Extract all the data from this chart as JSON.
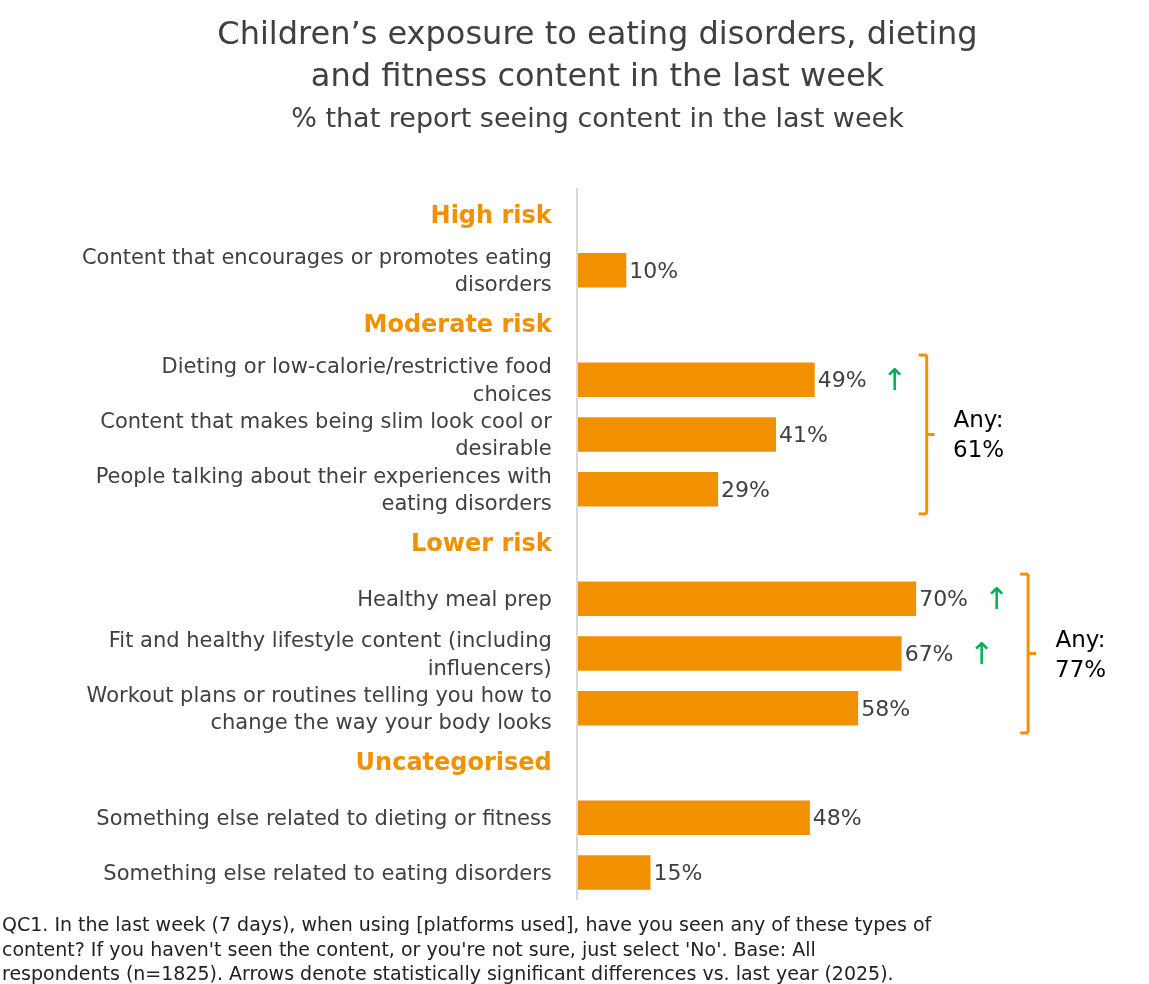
{
  "chart_data": {
    "type": "bar",
    "orientation": "horizontal",
    "title": "Children’s exposure to eating disorders, dieting and fitness content in the last week",
    "subtitle": "% that report seeing content in the last week",
    "categories": [
      "High risk",
      "Content that encourages or promotes eating disorders",
      "Moderate risk",
      "Dieting or low-calorie/restrictive food choices",
      "Content that makes being slim look cool or desirable",
      "People talking about their experiences with eating disorders",
      "Lower risk",
      "Healthy meal prep",
      "Fit and healthy lifestyle content (including influencers)",
      "Workout plans or routines telling you how to change the way your body looks",
      "Uncategorised",
      "Something else related to dieting or fitness",
      "Something else related to eating disorders"
    ],
    "values": [
      null,
      10,
      null,
      49,
      41,
      29,
      null,
      70,
      67,
      58,
      null,
      48,
      15
    ],
    "value_labels": [
      null,
      "10%",
      null,
      "49%",
      "41%",
      "29%",
      null,
      "70%",
      "67%",
      "58%",
      null,
      "48%",
      "15%"
    ],
    "color": "#f29100",
    "grid": false,
    "tick_labels": "y",
    "annotations": [
      "Any:\n61%",
      "Any:\n77%",
      {
        "text": "↑",
        "x": 49,
        "y": "Dieting or low-calorie/restrictive food choices"
      },
      {
        "text": "↑",
        "x": 70,
        "y": "Healthy meal prep"
      },
      {
        "text": "↑",
        "x": 67,
        "y": "Fit and healthy lifestyle content (including influencers)"
      },
      "QC1. In the last week (7 days), when using [platforms used], have you seen any of these types of content? If you haven't seen the content, or you're not sure, just select 'No'. Base: All respondents (n=1825). Arrows denote statistically significant differences vs. last year (2025)."
    ]
  }
}
